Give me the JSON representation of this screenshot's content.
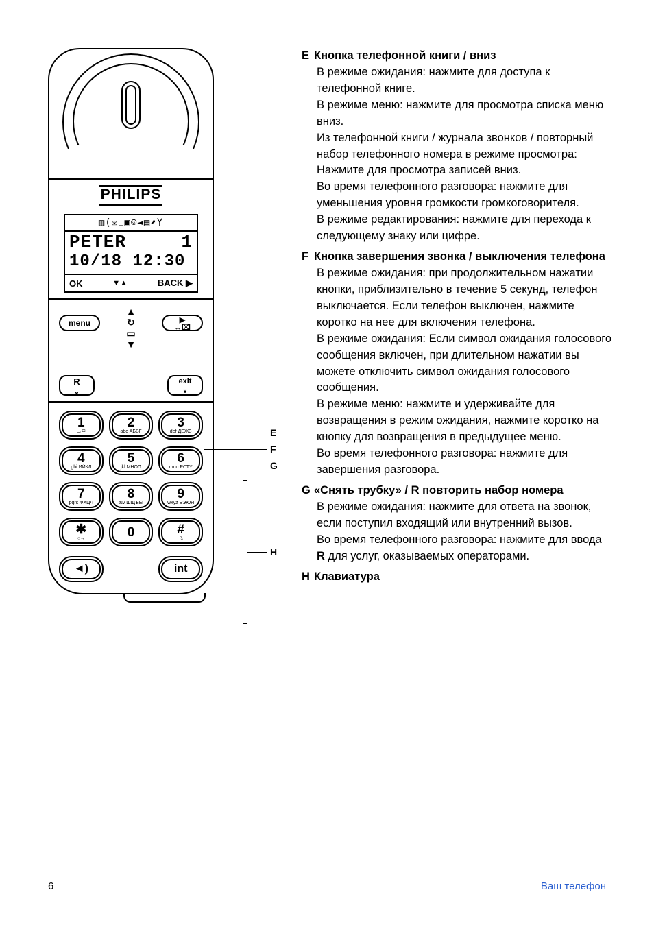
{
  "page_number": "6",
  "footer_section": "Ваш телефон",
  "phone": {
    "brand": "PHILIPS",
    "screen_icons": "▥(✉☐▣☺◄▤⬈Y",
    "name": "PETER",
    "signal": "1",
    "date": "10/18",
    "time": "12:30",
    "soft_ok": "OK",
    "soft_mid": "▼▲",
    "soft_back": "BACK ▶",
    "menu_label": "menu",
    "right_sym": "▶",
    "right_sym2": "↔⌧",
    "r_label": "R",
    "exit_label": "exit",
    "keys": [
      {
        "d": "1",
        "sub": "⌴ ✉"
      },
      {
        "d": "2",
        "sub": "abc\nАБВГ"
      },
      {
        "d": "3",
        "sub": "def\nДЕЖЗ"
      },
      {
        "d": "4",
        "sub": "ghi\nИЙКЛ"
      },
      {
        "d": "5",
        "sub": "jkl\nМНОП"
      },
      {
        "d": "6",
        "sub": "mno\nРСТУ"
      },
      {
        "d": "7",
        "sub": "pqrs\nФХЦЧ"
      },
      {
        "d": "8",
        "sub": "tuv\nШЩЪЫ"
      },
      {
        "d": "9",
        "sub": "wxyz\nЬЭЮЯ"
      },
      {
        "d": "✱",
        "sub": "○→"
      },
      {
        "d": "0",
        "sub": ""
      },
      {
        "d": "#",
        "sub": "⤵"
      }
    ],
    "speaker_icon": "◄)",
    "int_label": "int"
  },
  "callouts": {
    "E": "E",
    "F": "F",
    "G": "G",
    "H": "H"
  },
  "items": [
    {
      "letter": "E",
      "title": "Кнопка телефонной книги / вниз",
      "body": "В режиме ожидания: нажмите для доступа к телефонной книге.\nВ режиме меню: нажмите для просмотра списка меню вниз.\nИз телефонной книги / журнала звонков / повторный набор телефонного номера в режиме просмотра: Нажмите для просмотра записей вниз.\nВо время телефонного разговора: нажмите для уменьшения уровня громкости громкоговорителя.\nВ режиме редактирования: нажмите для перехода к следующему знаку или цифре."
    },
    {
      "letter": "F",
      "title": "Кнопка завершения звонка / выключения телефона",
      "body": "В режиме ожидания: при продолжительном нажатии кнопки, приблизительно в течение 5 секунд, телефон выключается. Если телефон выключен, нажмите коротко на нее для включения телефона.\nВ режиме ожидания: Если символ ожидания голосового сообщения включен, при длительном нажатии вы можете отключить символ ожидания голосового сообщения.\nВ режиме меню: нажмите и удерживайте для возвращения в режим ожидания, нажмите коротко на кнопку для возвращения в предыдущее меню.\nВо время телефонного разговора: нажмите для завершения разговора."
    },
    {
      "letter": "G",
      "title": "«Снять трубку» / R повторить набор номера",
      "body": "В режиме ожидания: нажмите для ответа на звонок, если поступил входящий или внутренний вызов.\nВо время телефонного разговора: нажмите для ввода R для услуг, оказываемых операторами."
    },
    {
      "letter": "H",
      "title": "Клавиатура",
      "body": ""
    }
  ],
  "r_bold": "R"
}
